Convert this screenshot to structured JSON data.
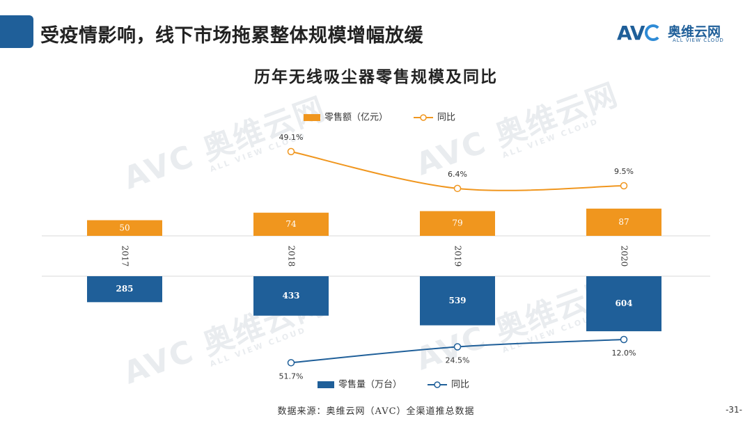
{
  "header": {
    "title": "受疫情影响，线下市场拖累整体规模增幅放缓",
    "logo_mark": "AV",
    "logo_cn": "奥维云网",
    "logo_en": "ALL VIEW CLOUD"
  },
  "watermark": {
    "big": "AVC 奥维云网",
    "small": "ALL VIEW CLOUD"
  },
  "chart_data": {
    "type": "bar",
    "title": "历年无线吸尘器零售规模及同比",
    "categories": [
      "2017",
      "2018",
      "2019",
      "2020"
    ],
    "series": [
      {
        "name": "零售额（亿元）",
        "values": [
          50,
          74,
          79,
          87
        ],
        "color": "#f0961e",
        "axis": "top-bars"
      },
      {
        "name": "同比",
        "values": [
          null,
          49.1,
          6.4,
          9.5
        ],
        "labels": [
          "",
          "49.1%",
          "6.4%",
          "9.5%"
        ],
        "color": "#f0961e",
        "type": "line",
        "axis": "top-line"
      },
      {
        "name": "零售量（万台）",
        "values": [
          285,
          433,
          539,
          604
        ],
        "color": "#1f5f99",
        "axis": "bottom-bars"
      },
      {
        "name": "同比",
        "values": [
          null,
          51.7,
          24.5,
          12.0
        ],
        "labels": [
          "",
          "51.7%",
          "24.5%",
          "12.0%"
        ],
        "color": "#1f5f99",
        "type": "line",
        "axis": "bottom-line"
      }
    ],
    "legend_top": "top-center",
    "legend_bottom": "bottom-center",
    "grid": false
  },
  "footer": {
    "source": "数据来源：奥维云网（AVC）全渠道推总数据",
    "page": "-31-"
  }
}
